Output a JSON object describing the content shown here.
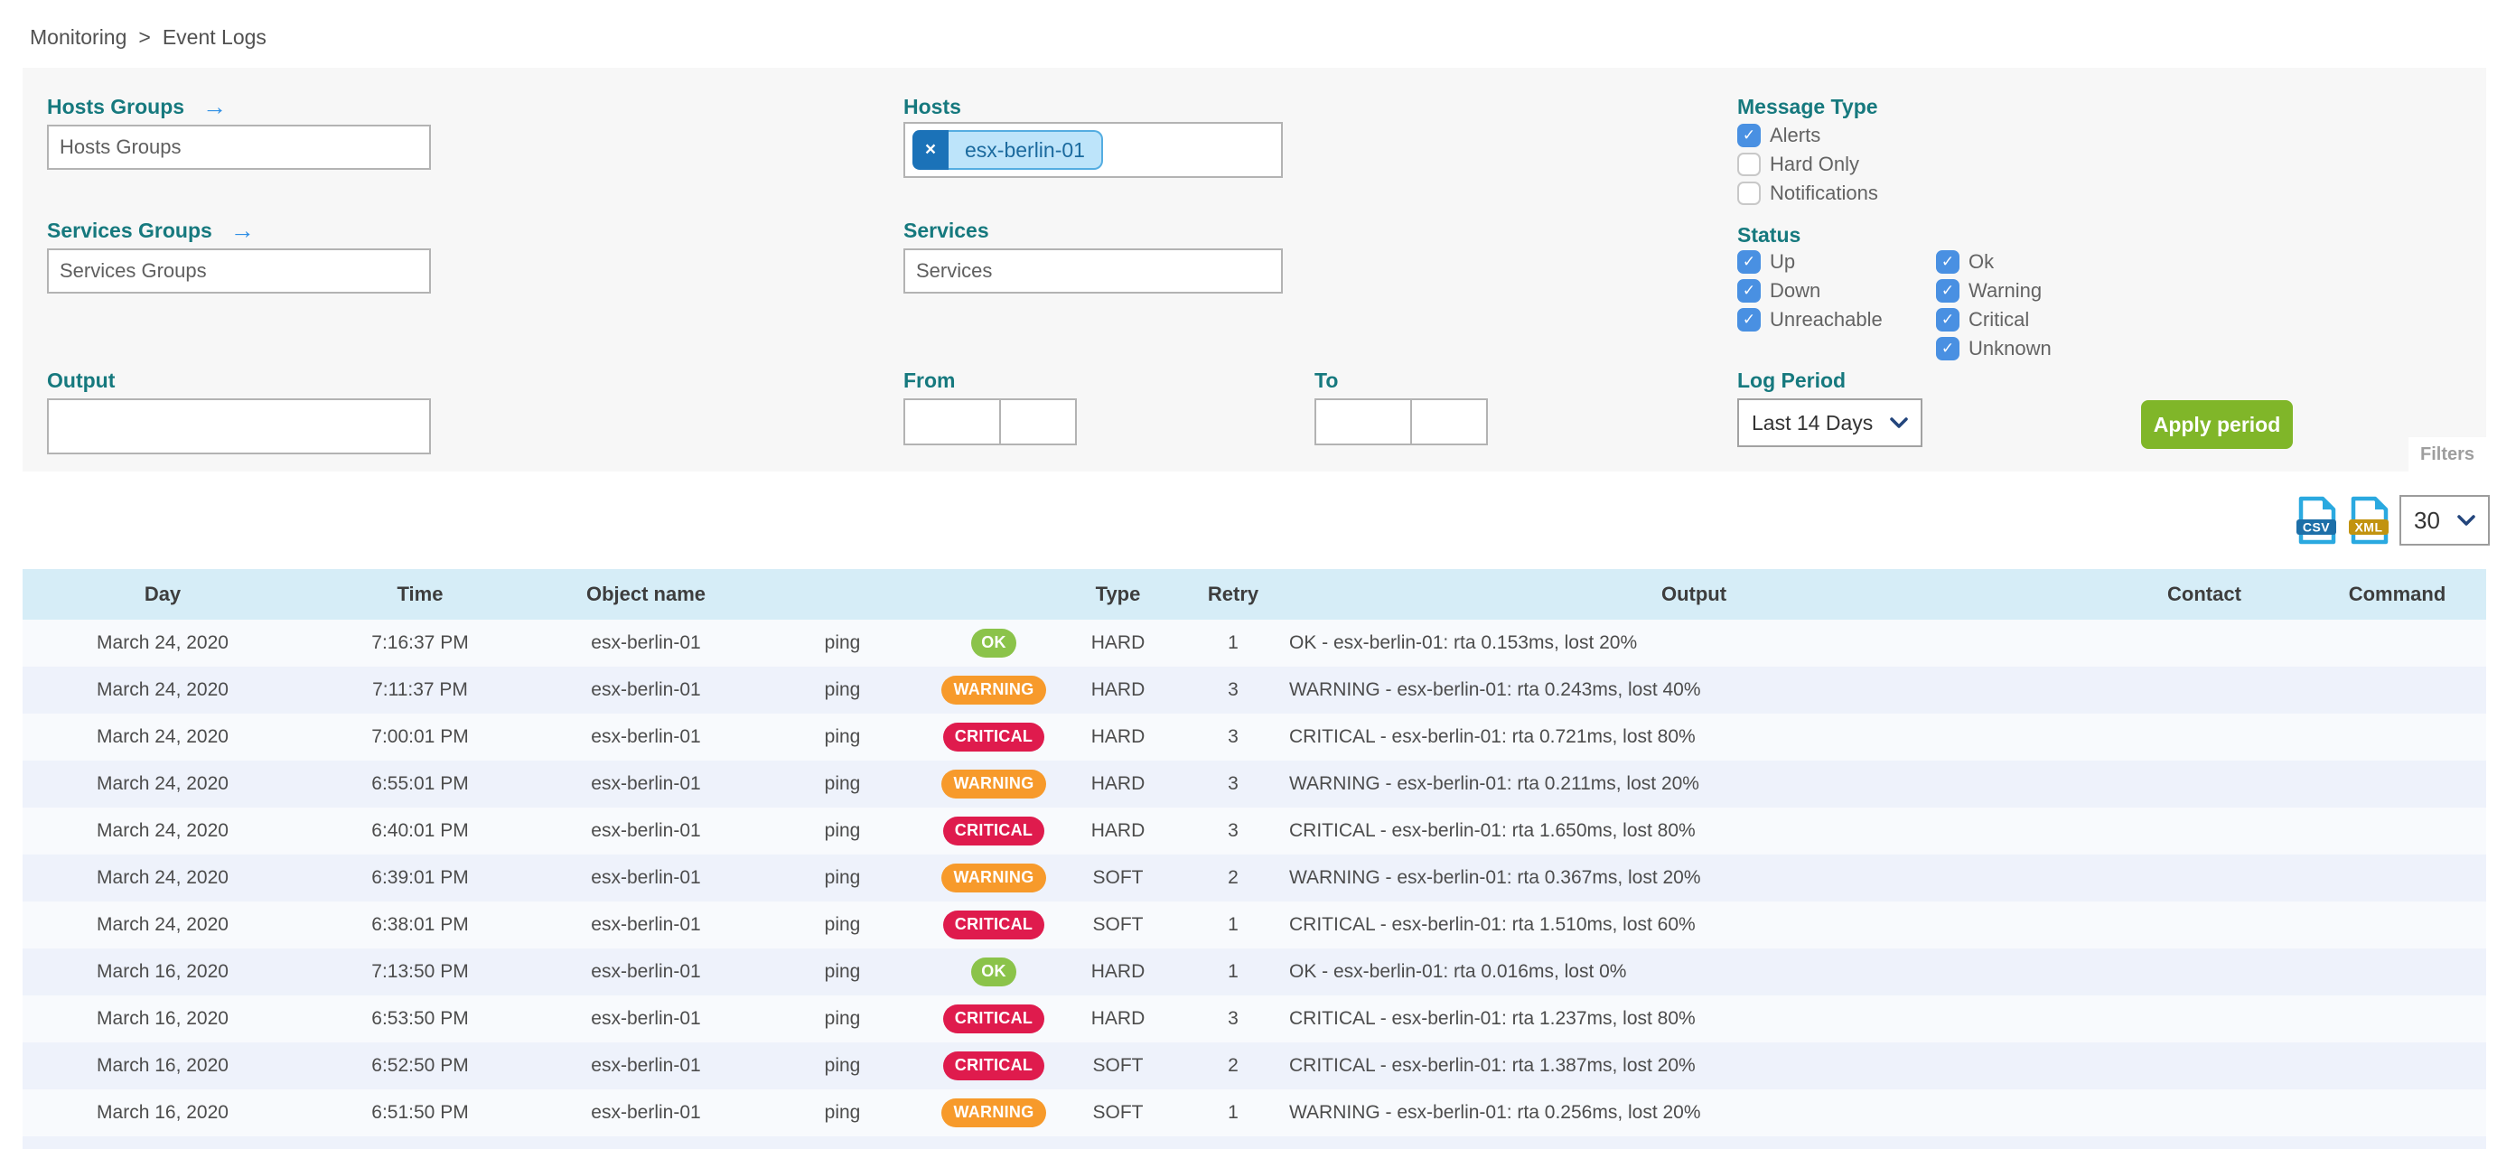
{
  "breadcrumb": {
    "items": [
      "Monitoring",
      "Event Logs"
    ],
    "separator": ">"
  },
  "filter_panel": {
    "tab_label": "Filters",
    "hosts_groups_label": "Hosts Groups",
    "hosts_groups_placeholder": "Hosts Groups",
    "services_groups_label": "Services Groups",
    "services_groups_placeholder": "Services Groups",
    "hosts_label": "Hosts",
    "hosts_selected": [
      {
        "label": "esx-berlin-01",
        "remove_icon": "×"
      }
    ],
    "services_label": "Services",
    "services_placeholder": "Services",
    "output_label": "Output",
    "output_value": "",
    "from_label": "From",
    "from_date": "",
    "from_time": "",
    "to_label": "To",
    "to_date": "",
    "to_time": "",
    "message_type_label": "Message Type",
    "message_type_options": [
      {
        "label": "Alerts",
        "checked": true
      },
      {
        "label": "Hard Only",
        "checked": false
      },
      {
        "label": "Notifications",
        "checked": false
      }
    ],
    "status_label": "Status",
    "status_options_col1": [
      {
        "label": "Up",
        "checked": true
      },
      {
        "label": "Down",
        "checked": true
      },
      {
        "label": "Unreachable",
        "checked": true
      }
    ],
    "status_options_col2": [
      {
        "label": "Ok",
        "checked": true
      },
      {
        "label": "Warning",
        "checked": true
      },
      {
        "label": "Critical",
        "checked": true
      },
      {
        "label": "Unknown",
        "checked": true
      }
    ],
    "log_period_label": "Log Period",
    "log_period_selected": "Last 14 Days",
    "apply_button_label": "Apply period"
  },
  "toolbar": {
    "csv_icon_label": "CSV",
    "xml_icon_label": "XML",
    "page_size_selected": "30"
  },
  "table": {
    "headers": {
      "day": "Day",
      "time": "Time",
      "object_name": "Object name",
      "service": "",
      "status": "",
      "type": "Type",
      "retry": "Retry",
      "output": "Output",
      "contact": "Contact",
      "command": "Command"
    },
    "rows": [
      {
        "day": "March 24, 2020",
        "time": "7:16:37 PM",
        "object_name": "esx-berlin-01",
        "service": "ping",
        "status": "OK",
        "type": "HARD",
        "retry": "1",
        "output": "OK - esx-berlin-01: rta 0.153ms, lost 20%",
        "contact": "",
        "command": ""
      },
      {
        "day": "March 24, 2020",
        "time": "7:11:37 PM",
        "object_name": "esx-berlin-01",
        "service": "ping",
        "status": "WARNING",
        "type": "HARD",
        "retry": "3",
        "output": "WARNING - esx-berlin-01: rta 0.243ms, lost 40%",
        "contact": "",
        "command": ""
      },
      {
        "day": "March 24, 2020",
        "time": "7:00:01 PM",
        "object_name": "esx-berlin-01",
        "service": "ping",
        "status": "CRITICAL",
        "type": "HARD",
        "retry": "3",
        "output": "CRITICAL - esx-berlin-01: rta 0.721ms, lost 80%",
        "contact": "",
        "command": ""
      },
      {
        "day": "March 24, 2020",
        "time": "6:55:01 PM",
        "object_name": "esx-berlin-01",
        "service": "ping",
        "status": "WARNING",
        "type": "HARD",
        "retry": "3",
        "output": "WARNING - esx-berlin-01: rta 0.211ms, lost 20%",
        "contact": "",
        "command": ""
      },
      {
        "day": "March 24, 2020",
        "time": "6:40:01 PM",
        "object_name": "esx-berlin-01",
        "service": "ping",
        "status": "CRITICAL",
        "type": "HARD",
        "retry": "3",
        "output": "CRITICAL - esx-berlin-01: rta 1.650ms, lost 80%",
        "contact": "",
        "command": ""
      },
      {
        "day": "March 24, 2020",
        "time": "6:39:01 PM",
        "object_name": "esx-berlin-01",
        "service": "ping",
        "status": "WARNING",
        "type": "SOFT",
        "retry": "2",
        "output": "WARNING - esx-berlin-01: rta 0.367ms, lost 20%",
        "contact": "",
        "command": ""
      },
      {
        "day": "March 24, 2020",
        "time": "6:38:01 PM",
        "object_name": "esx-berlin-01",
        "service": "ping",
        "status": "CRITICAL",
        "type": "SOFT",
        "retry": "1",
        "output": "CRITICAL - esx-berlin-01: rta 1.510ms, lost 60%",
        "contact": "",
        "command": ""
      },
      {
        "day": "March 16, 2020",
        "time": "7:13:50 PM",
        "object_name": "esx-berlin-01",
        "service": "ping",
        "status": "OK",
        "type": "HARD",
        "retry": "1",
        "output": "OK - esx-berlin-01: rta 0.016ms, lost 0%",
        "contact": "",
        "command": ""
      },
      {
        "day": "March 16, 2020",
        "time": "6:53:50 PM",
        "object_name": "esx-berlin-01",
        "service": "ping",
        "status": "CRITICAL",
        "type": "HARD",
        "retry": "3",
        "output": "CRITICAL - esx-berlin-01: rta 1.237ms, lost 80%",
        "contact": "",
        "command": ""
      },
      {
        "day": "March 16, 2020",
        "time": "6:52:50 PM",
        "object_name": "esx-berlin-01",
        "service": "ping",
        "status": "CRITICAL",
        "type": "SOFT",
        "retry": "2",
        "output": "CRITICAL - esx-berlin-01: rta 1.387ms, lost 20%",
        "contact": "",
        "command": ""
      },
      {
        "day": "March 16, 2020",
        "time": "6:51:50 PM",
        "object_name": "esx-berlin-01",
        "service": "ping",
        "status": "WARNING",
        "type": "SOFT",
        "retry": "1",
        "output": "WARNING - esx-berlin-01: rta 0.256ms, lost 20%",
        "contact": "",
        "command": ""
      }
    ]
  },
  "colors": {
    "label_teal": "#16797e",
    "link_arrow_blue": "#2f8fe5",
    "checkbox_blue": "#4990e2",
    "chip_remove_bg": "#1b72b8",
    "chip_bg": "#bde4fa",
    "chip_border": "#54ade1",
    "chip_text": "#1b6a9e",
    "apply_button_green": "#80b629",
    "status_ok_green": "#8bc34a",
    "status_warning_orange": "#f79a2b",
    "status_critical_red": "#df1b4d",
    "table_header_bg": "#d6edf7",
    "row_alt_bg": "#eef2fb",
    "file_icon_blue": "#2aa9e0",
    "csv_badge_bg": "#1d6fa8",
    "xml_badge_bg": "#c2930f",
    "select_chevron_navy": "#23457c"
  }
}
